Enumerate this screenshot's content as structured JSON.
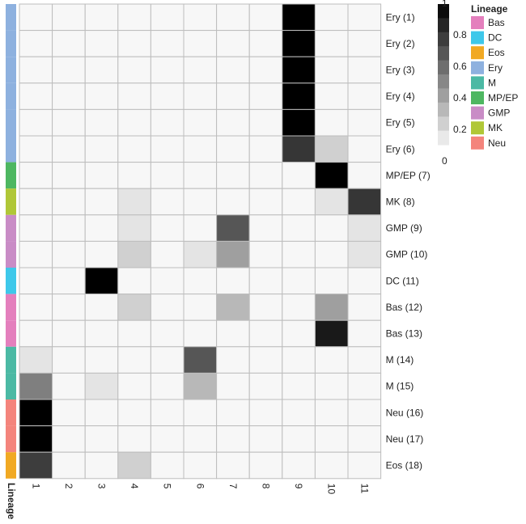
{
  "chart_data": {
    "type": "heatmap",
    "rows": [
      {
        "label": "Ery (1)",
        "lineage": "Ery"
      },
      {
        "label": "Ery (2)",
        "lineage": "Ery"
      },
      {
        "label": "Ery (3)",
        "lineage": "Ery"
      },
      {
        "label": "Ery (4)",
        "lineage": "Ery"
      },
      {
        "label": "Ery (5)",
        "lineage": "Ery"
      },
      {
        "label": "Ery (6)",
        "lineage": "Ery"
      },
      {
        "label": "MP/EP (7)",
        "lineage": "MP/EP"
      },
      {
        "label": "MK (8)",
        "lineage": "MK"
      },
      {
        "label": "GMP (9)",
        "lineage": "GMP"
      },
      {
        "label": "GMP (10)",
        "lineage": "GMP"
      },
      {
        "label": "DC (11)",
        "lineage": "DC"
      },
      {
        "label": "Bas (12)",
        "lineage": "Bas"
      },
      {
        "label": "Bas (13)",
        "lineage": "Bas"
      },
      {
        "label": "M (14)",
        "lineage": "M"
      },
      {
        "label": "M (15)",
        "lineage": "M"
      },
      {
        "label": "Neu (16)",
        "lineage": "Neu"
      },
      {
        "label": "Neu (17)",
        "lineage": "Neu"
      },
      {
        "label": "Eos (18)",
        "lineage": "Eos"
      }
    ],
    "columns": [
      "1",
      "2",
      "3",
      "4",
      "5",
      "6",
      "7",
      "8",
      "9",
      "10",
      "11"
    ],
    "values": [
      [
        0,
        0,
        0,
        0,
        0,
        0,
        0,
        0,
        1.0,
        0,
        0
      ],
      [
        0,
        0,
        0,
        0,
        0,
        0,
        0,
        0,
        1.0,
        0,
        0
      ],
      [
        0,
        0,
        0,
        0,
        0,
        0,
        0,
        0,
        1.0,
        0,
        0
      ],
      [
        0,
        0,
        0,
        0,
        0,
        0,
        0,
        0,
        1.0,
        0,
        0
      ],
      [
        0,
        0,
        0,
        0,
        0,
        0,
        0,
        0,
        1.0,
        0,
        0
      ],
      [
        0,
        0,
        0,
        0,
        0,
        0,
        0,
        0,
        0.78,
        0.15,
        0
      ],
      [
        0,
        0,
        0,
        0,
        0,
        0,
        0,
        0,
        0,
        1.0,
        0
      ],
      [
        0,
        0,
        0,
        0.07,
        0,
        0,
        0,
        0,
        0,
        0.07,
        0.78
      ],
      [
        0,
        0,
        0,
        0.07,
        0,
        0,
        0.65,
        0,
        0,
        0,
        0.07
      ],
      [
        0,
        0,
        0,
        0.15,
        0,
        0.07,
        0.35,
        0,
        0,
        0,
        0.07
      ],
      [
        0,
        0,
        1.0,
        0,
        0,
        0,
        0,
        0,
        0,
        0,
        0
      ],
      [
        0,
        0,
        0,
        0.15,
        0,
        0,
        0.25,
        0,
        0,
        0.35,
        0
      ],
      [
        0,
        0,
        0,
        0,
        0,
        0,
        0,
        0,
        0,
        0.9,
        0
      ],
      [
        0.07,
        0,
        0,
        0,
        0,
        0.65,
        0,
        0,
        0,
        0,
        0
      ],
      [
        0.48,
        0,
        0.07,
        0,
        0,
        0.25,
        0,
        0,
        0,
        0,
        0
      ],
      [
        1.0,
        0,
        0,
        0,
        0,
        0,
        0,
        0,
        0,
        0,
        0
      ],
      [
        1.0,
        0,
        0,
        0,
        0,
        0,
        0,
        0,
        0,
        0,
        0
      ],
      [
        0.75,
        0,
        0,
        0.15,
        0,
        0,
        0,
        0,
        0,
        0,
        0
      ]
    ],
    "color_scale": {
      "min": 0,
      "max": 1,
      "ticks": [
        "1",
        "0.8",
        "0.6",
        "0.4",
        "0.2",
        "0"
      ],
      "low_color": "#ffffff",
      "high_color": "#000000"
    },
    "lineage_annotation_label": "Lineage",
    "legend": {
      "title": "Lineage",
      "items": [
        {
          "name": "Bas",
          "color": "#e47fbd"
        },
        {
          "name": "DC",
          "color": "#3ec8ea"
        },
        {
          "name": "Eos",
          "color": "#f1a923"
        },
        {
          "name": "Ery",
          "color": "#8eb1df"
        },
        {
          "name": "M",
          "color": "#4bb9a4"
        },
        {
          "name": "MP/EP",
          "color": "#4eb761"
        },
        {
          "name": "GMP",
          "color": "#c98cc6"
        },
        {
          "name": "MK",
          "color": "#b0c737"
        },
        {
          "name": "Neu",
          "color": "#f4847c"
        }
      ]
    }
  }
}
